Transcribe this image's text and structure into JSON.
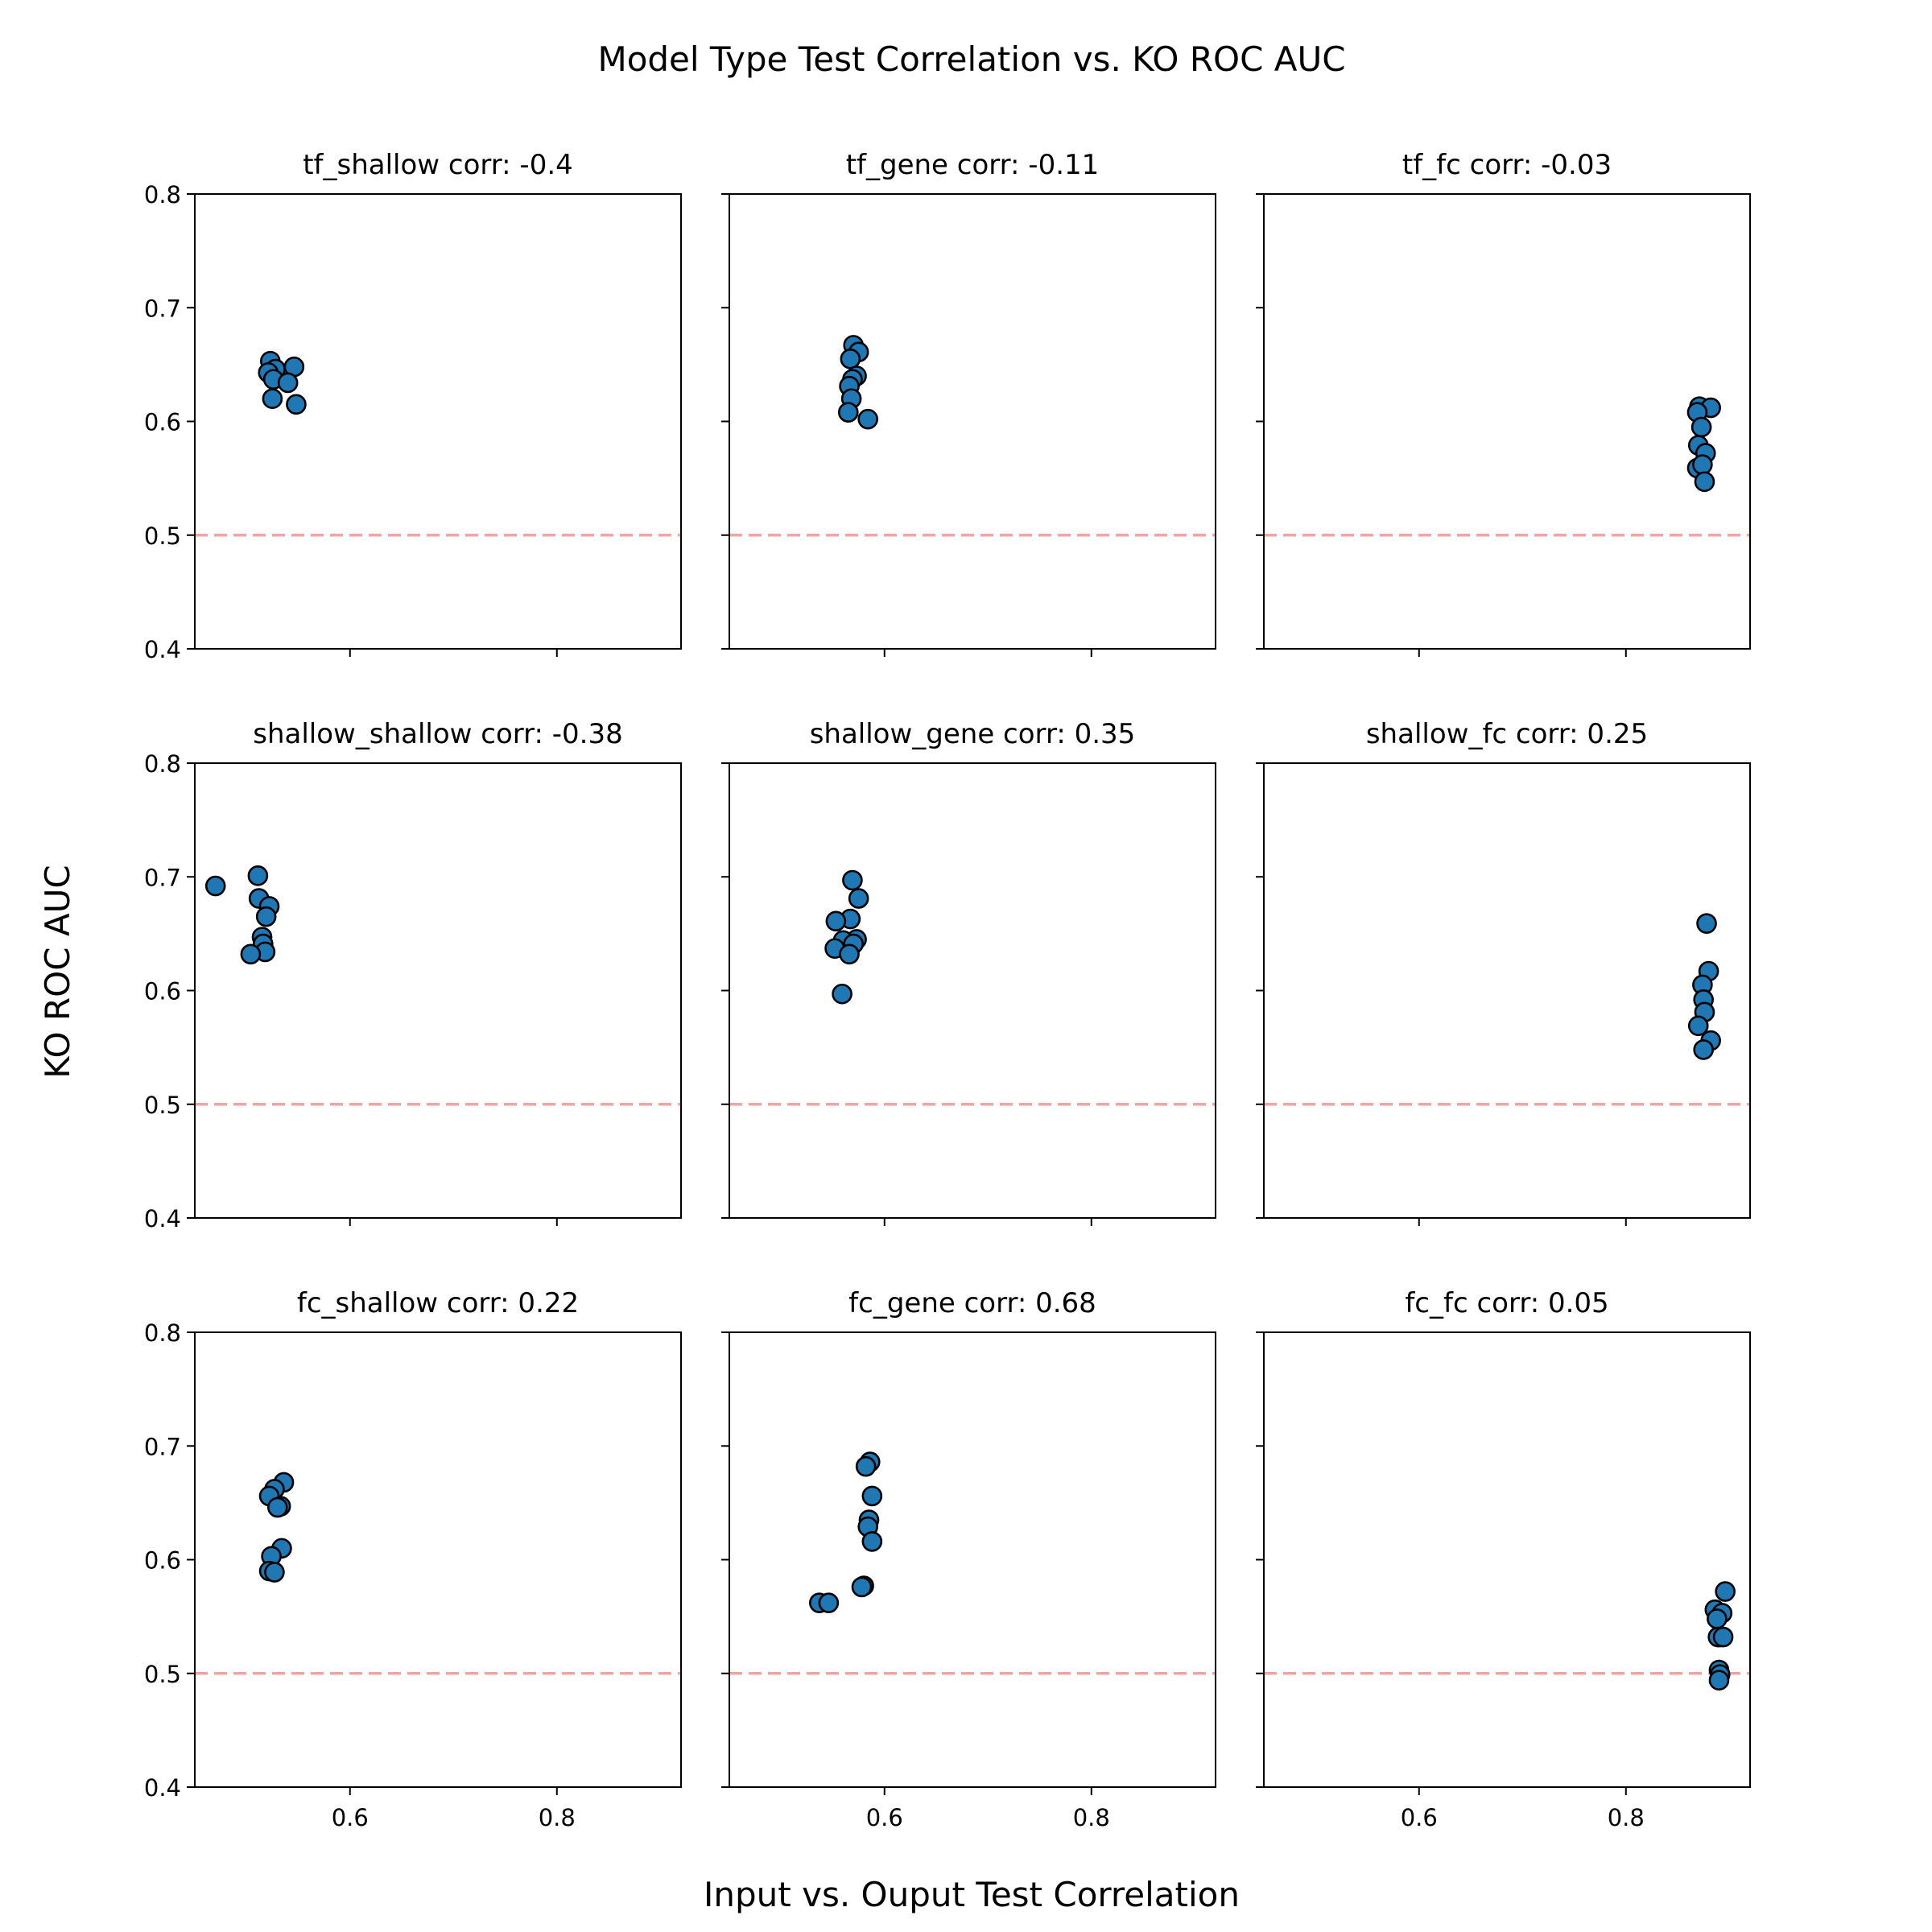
{
  "figure": {
    "suptitle": "Model Type Test Correlation vs. KO ROC AUC",
    "xlabel": "Input vs. Ouput Test Correlation",
    "ylabel": "KO ROC AUC"
  },
  "chart_data": [
    {
      "type": "scatter",
      "title": "tf_shallow corr: -0.4",
      "xlim": [
        0.45,
        0.92
      ],
      "ylim": [
        0.4,
        0.8
      ],
      "xticks": [
        0.6,
        0.8
      ],
      "yticks": [
        0.4,
        0.5,
        0.6,
        0.7,
        0.8
      ],
      "reference_line": 0.5,
      "marker_color": "#1f77b4",
      "grid": false,
      "x": [
        0.523,
        0.528,
        0.546,
        0.521,
        0.526,
        0.54,
        0.525,
        0.548
      ],
      "y": [
        0.653,
        0.646,
        0.648,
        0.643,
        0.637,
        0.634,
        0.62,
        0.615
      ]
    },
    {
      "type": "scatter",
      "title": "tf_gene corr: -0.11",
      "xlim": [
        0.45,
        0.92
      ],
      "ylim": [
        0.4,
        0.8
      ],
      "xticks": [
        0.6,
        0.8
      ],
      "yticks": [
        0.4,
        0.5,
        0.6,
        0.7,
        0.8
      ],
      "reference_line": 0.5,
      "marker_color": "#1f77b4",
      "grid": false,
      "x": [
        0.57,
        0.575,
        0.567,
        0.573,
        0.569,
        0.566,
        0.568,
        0.565,
        0.584
      ],
      "y": [
        0.667,
        0.661,
        0.655,
        0.64,
        0.637,
        0.631,
        0.62,
        0.608,
        0.602
      ]
    },
    {
      "type": "scatter",
      "title": "tf_fc corr: -0.03",
      "xlim": [
        0.45,
        0.92
      ],
      "ylim": [
        0.4,
        0.8
      ],
      "xticks": [
        0.6,
        0.8
      ],
      "yticks": [
        0.4,
        0.5,
        0.6,
        0.7,
        0.8
      ],
      "reference_line": 0.5,
      "marker_color": "#1f77b4",
      "grid": false,
      "x": [
        0.871,
        0.882,
        0.869,
        0.873,
        0.87,
        0.877,
        0.869,
        0.874,
        0.876
      ],
      "y": [
        0.613,
        0.612,
        0.608,
        0.595,
        0.579,
        0.572,
        0.559,
        0.562,
        0.547
      ]
    },
    {
      "type": "scatter",
      "title": "shallow_shallow corr: -0.38",
      "xlim": [
        0.45,
        0.92
      ],
      "ylim": [
        0.4,
        0.8
      ],
      "xticks": [
        0.6,
        0.8
      ],
      "yticks": [
        0.4,
        0.5,
        0.6,
        0.7,
        0.8
      ],
      "reference_line": 0.5,
      "marker_color": "#1f77b4",
      "grid": false,
      "x": [
        0.47,
        0.511,
        0.512,
        0.522,
        0.519,
        0.515,
        0.516,
        0.518,
        0.504
      ],
      "y": [
        0.692,
        0.701,
        0.681,
        0.674,
        0.665,
        0.647,
        0.641,
        0.634,
        0.632
      ]
    },
    {
      "type": "scatter",
      "title": "shallow_gene corr: 0.35",
      "xlim": [
        0.45,
        0.92
      ],
      "ylim": [
        0.4,
        0.8
      ],
      "xticks": [
        0.6,
        0.8
      ],
      "yticks": [
        0.4,
        0.5,
        0.6,
        0.7,
        0.8
      ],
      "reference_line": 0.5,
      "marker_color": "#1f77b4",
      "grid": false,
      "x": [
        0.569,
        0.575,
        0.567,
        0.553,
        0.573,
        0.56,
        0.57,
        0.552,
        0.566,
        0.559
      ],
      "y": [
        0.697,
        0.681,
        0.663,
        0.661,
        0.645,
        0.644,
        0.641,
        0.637,
        0.632,
        0.597
      ]
    },
    {
      "type": "scatter",
      "title": "shallow_fc corr: 0.25",
      "xlim": [
        0.45,
        0.92
      ],
      "ylim": [
        0.4,
        0.8
      ],
      "xticks": [
        0.6,
        0.8
      ],
      "yticks": [
        0.4,
        0.5,
        0.6,
        0.7,
        0.8
      ],
      "reference_line": 0.5,
      "marker_color": "#1f77b4",
      "grid": false,
      "x": [
        0.878,
        0.88,
        0.874,
        0.875,
        0.876,
        0.87,
        0.882,
        0.875
      ],
      "y": [
        0.659,
        0.617,
        0.605,
        0.592,
        0.581,
        0.569,
        0.556,
        0.548
      ]
    },
    {
      "type": "scatter",
      "title": "fc_shallow corr: 0.22",
      "xlim": [
        0.45,
        0.92
      ],
      "ylim": [
        0.4,
        0.8
      ],
      "xticks": [
        0.6,
        0.8
      ],
      "yticks": [
        0.4,
        0.5,
        0.6,
        0.7,
        0.8
      ],
      "reference_line": 0.5,
      "marker_color": "#1f77b4",
      "grid": false,
      "x": [
        0.536,
        0.527,
        0.522,
        0.533,
        0.53,
        0.534,
        0.524,
        0.522,
        0.527
      ],
      "y": [
        0.668,
        0.662,
        0.656,
        0.647,
        0.646,
        0.61,
        0.603,
        0.59,
        0.589
      ]
    },
    {
      "type": "scatter",
      "title": "fc_gene corr: 0.68",
      "xlim": [
        0.45,
        0.92
      ],
      "ylim": [
        0.4,
        0.8
      ],
      "xticks": [
        0.6,
        0.8
      ],
      "yticks": [
        0.4,
        0.5,
        0.6,
        0.7,
        0.8
      ],
      "reference_line": 0.5,
      "marker_color": "#1f77b4",
      "grid": false,
      "x": [
        0.586,
        0.582,
        0.588,
        0.585,
        0.584,
        0.588,
        0.58,
        0.578,
        0.537,
        0.546
      ],
      "y": [
        0.686,
        0.682,
        0.656,
        0.635,
        0.629,
        0.616,
        0.577,
        0.576,
        0.562,
        0.562
      ]
    },
    {
      "type": "scatter",
      "title": "fc_fc corr: 0.05",
      "xlim": [
        0.45,
        0.92
      ],
      "ylim": [
        0.4,
        0.8
      ],
      "xticks": [
        0.6,
        0.8
      ],
      "yticks": [
        0.4,
        0.5,
        0.6,
        0.7,
        0.8
      ],
      "reference_line": 0.5,
      "marker_color": "#1f77b4",
      "grid": false,
      "x": [
        0.896,
        0.886,
        0.893,
        0.888,
        0.891,
        0.889,
        0.894,
        0.89,
        0.891,
        0.89
      ],
      "y": [
        0.572,
        0.556,
        0.553,
        0.548,
        0.532,
        0.532,
        0.532,
        0.503,
        0.499,
        0.494
      ]
    }
  ]
}
